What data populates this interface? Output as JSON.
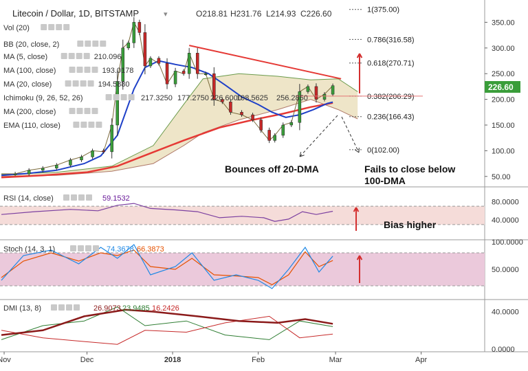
{
  "header": {
    "title": "Litecoin / Dollar, 1D, BITSTAMP",
    "ohlc": [
      "O218.81",
      "H231.76",
      "L214.93",
      "C226.60"
    ],
    "last_price": "226.60"
  },
  "indicators": [
    {
      "label": "Vol (20)",
      "value": "",
      "color": "#bbbbbb"
    },
    {
      "label": "BB (20, close, 2)",
      "value": "",
      "color": "#bbbbbb"
    },
    {
      "label": "MA (5, close)",
      "value": "210.096",
      "color": "#8b1a1a"
    },
    {
      "label": "MA (100, close)",
      "value": "193.0178",
      "color": "#e53935"
    },
    {
      "label": "MA (20, close)",
      "value": "194.5880",
      "color": "#1e40c8"
    },
    {
      "label": "Ichimoku (9, 26, 52, 26)",
      "values": [
        "217.3250",
        "177.2750",
        "226.6000",
        "198.5625",
        "256.2850"
      ],
      "colors": [
        "#1e88e5",
        "#8b1a1a",
        "#2e7d32",
        "#2e7d32",
        "#c62828"
      ]
    },
    {
      "label": "MA (200, close)",
      "value": "",
      "color": "#bbbbbb"
    },
    {
      "label": "EMA (110, close)",
      "value": "",
      "color": "#bbbbbb"
    }
  ],
  "annotations": {
    "bounce": "Bounces off 20-DMA",
    "fails_line1": "Fails to close below",
    "fails_line2": "100-DMA",
    "bias": "Bias higher"
  },
  "fib_levels": [
    {
      "label": "1(375.00)",
      "price": 375.0
    },
    {
      "label": "0.786(316.58)",
      "price": 316.58
    },
    {
      "label": "0.618(270.71)",
      "price": 270.71
    },
    {
      "label": "0.382(206.29)",
      "price": 206.29
    },
    {
      "label": "0.236(166.43)",
      "price": 166.43
    },
    {
      "label": "0(102.00)",
      "price": 102.0
    }
  ],
  "rsi_panel": {
    "label": "RSI (14, close)",
    "value": "59.1532",
    "ticks": [
      "80.0000",
      "40.0000"
    ],
    "bands": [
      70,
      30
    ]
  },
  "stoch_panel": {
    "label": "Stoch (14, 3, 1)",
    "values": [
      "74.3678",
      "66.3873"
    ],
    "ticks": [
      "100.0000",
      "50.0000"
    ],
    "bands": [
      80,
      20
    ]
  },
  "dmi_panel": {
    "label": "DMI (13, 8)",
    "values": [
      "26.9073",
      "23.9485",
      "16.2426"
    ],
    "ticks": [
      "40.0000",
      "0.0000"
    ]
  },
  "chart_data": {
    "type": "line",
    "title": "Litecoin / Dollar, 1D, BITSTAMP",
    "xlabel": "",
    "ylabel": "",
    "x_ticks": [
      "Nov",
      "Dec",
      "2018",
      "Feb",
      "Mar",
      "Apr"
    ],
    "y_ticks": [
      350,
      300,
      250,
      200,
      150,
      100,
      50
    ],
    "ylim": [
      35,
      380
    ],
    "x_range": [
      "2017-10-31",
      "2018-04-24"
    ],
    "close": [
      [
        "2017-10-31",
        55
      ],
      [
        "2017-11-05",
        55
      ],
      [
        "2017-11-10",
        62
      ],
      [
        "2017-11-15",
        66
      ],
      [
        "2017-11-20",
        72
      ],
      [
        "2017-11-25",
        82
      ],
      [
        "2017-11-29",
        88
      ],
      [
        "2017-12-03",
        100
      ],
      [
        "2017-12-07",
        98
      ],
      [
        "2017-12-10",
        150
      ],
      [
        "2017-12-12",
        235
      ],
      [
        "2017-12-14",
        300
      ],
      [
        "2017-12-16",
        310
      ],
      [
        "2017-12-18",
        350
      ],
      [
        "2017-12-20",
        330
      ],
      [
        "2017-12-22",
        265
      ],
      [
        "2017-12-24",
        280
      ],
      [
        "2017-12-27",
        270
      ],
      [
        "2017-12-30",
        230
      ],
      [
        "2018-01-02",
        255
      ],
      [
        "2018-01-05",
        250
      ],
      [
        "2018-01-07",
        290
      ],
      [
        "2018-01-10",
        250
      ],
      [
        "2018-01-13",
        250
      ],
      [
        "2018-01-16",
        200
      ],
      [
        "2018-01-19",
        195
      ],
      [
        "2018-01-22",
        175
      ],
      [
        "2018-01-26",
        170
      ],
      [
        "2018-01-30",
        160
      ],
      [
        "2018-02-02",
        140
      ],
      [
        "2018-02-05",
        120
      ],
      [
        "2018-02-07",
        130
      ],
      [
        "2018-02-10",
        150
      ],
      [
        "2018-02-13",
        155
      ],
      [
        "2018-02-16",
        215
      ],
      [
        "2018-02-19",
        225
      ],
      [
        "2018-02-22",
        200
      ],
      [
        "2018-02-25",
        210
      ],
      [
        "2018-02-28",
        226.6
      ]
    ],
    "series": [
      {
        "name": "MA (20, close)",
        "values": [
          [
            "2017-10-31",
            52
          ],
          [
            "2017-11-10",
            56
          ],
          [
            "2017-11-20",
            62
          ],
          [
            "2017-11-30",
            75
          ],
          [
            "2017-12-06",
            90
          ],
          [
            "2017-12-12",
            130
          ],
          [
            "2017-12-18",
            220
          ],
          [
            "2017-12-22",
            262
          ],
          [
            "2017-12-27",
            275
          ],
          [
            "2018-01-02",
            268
          ],
          [
            "2018-01-08",
            262
          ],
          [
            "2018-01-14",
            250
          ],
          [
            "2018-01-20",
            228
          ],
          [
            "2018-01-26",
            205
          ],
          [
            "2018-02-01",
            190
          ],
          [
            "2018-02-06",
            175
          ],
          [
            "2018-02-11",
            165
          ],
          [
            "2018-02-16",
            170
          ],
          [
            "2018-02-21",
            180
          ],
          [
            "2018-02-26",
            192
          ],
          [
            "2018-02-28",
            194.6
          ]
        ]
      },
      {
        "name": "MA (100, close)",
        "values": [
          [
            "2017-10-31",
            48
          ],
          [
            "2017-11-15",
            52
          ],
          [
            "2017-12-01",
            58
          ],
          [
            "2017-12-12",
            70
          ],
          [
            "2017-12-24",
            95
          ],
          [
            "2018-01-05",
            120
          ],
          [
            "2018-01-18",
            145
          ],
          [
            "2018-01-30",
            160
          ],
          [
            "2018-02-10",
            172
          ],
          [
            "2018-02-20",
            185
          ],
          [
            "2018-02-28",
            193
          ]
        ]
      }
    ],
    "trendline": [
      [
        "2018-01-07",
        305
      ],
      [
        "2018-03-03",
        240
      ]
    ],
    "ichimoku_cloud_upper": [
      [
        "2017-10-31",
        54
      ],
      [
        "2017-11-20",
        58
      ],
      [
        "2017-12-10",
        70
      ],
      [
        "2017-12-25",
        110
      ],
      [
        "2018-01-05",
        190
      ],
      [
        "2018-01-12",
        240
      ],
      [
        "2018-01-25",
        250
      ],
      [
        "2018-02-08",
        245
      ],
      [
        "2018-02-20",
        238
      ],
      [
        "2018-03-02",
        240
      ],
      [
        "2018-03-09",
        215
      ]
    ],
    "ichimoku_cloud_lower": [
      [
        "2017-10-31",
        50
      ],
      [
        "2017-11-20",
        52
      ],
      [
        "2017-12-10",
        60
      ],
      [
        "2017-12-25",
        75
      ],
      [
        "2018-01-05",
        110
      ],
      [
        "2018-01-12",
        135
      ],
      [
        "2018-01-25",
        160
      ],
      [
        "2018-02-08",
        180
      ],
      [
        "2018-02-20",
        200
      ],
      [
        "2018-03-02",
        180
      ],
      [
        "2018-03-09",
        162
      ]
    ],
    "rsi": [
      [
        "2017-10-31",
        52
      ],
      [
        "2017-11-12",
        58
      ],
      [
        "2017-11-25",
        63
      ],
      [
        "2017-12-05",
        60
      ],
      [
        "2017-12-12",
        72
      ],
      [
        "2017-12-18",
        76
      ],
      [
        "2017-12-24",
        65
      ],
      [
        "2018-01-02",
        62
      ],
      [
        "2018-01-10",
        58
      ],
      [
        "2018-01-18",
        45
      ],
      [
        "2018-01-26",
        48
      ],
      [
        "2018-02-03",
        45
      ],
      [
        "2018-02-07",
        37
      ],
      [
        "2018-02-12",
        42
      ],
      [
        "2018-02-17",
        58
      ],
      [
        "2018-02-22",
        52
      ],
      [
        "2018-02-28",
        59
      ]
    ],
    "stoch_k": [
      [
        "2017-10-31",
        30
      ],
      [
        "2017-11-08",
        75
      ],
      [
        "2017-11-18",
        85
      ],
      [
        "2017-11-28",
        60
      ],
      [
        "2017-12-06",
        90
      ],
      [
        "2017-12-12",
        70
      ],
      [
        "2017-12-18",
        95
      ],
      [
        "2017-12-24",
        40
      ],
      [
        "2018-01-02",
        55
      ],
      [
        "2018-01-08",
        80
      ],
      [
        "2018-01-16",
        30
      ],
      [
        "2018-01-24",
        40
      ],
      [
        "2018-02-01",
        30
      ],
      [
        "2018-02-06",
        15
      ],
      [
        "2018-02-12",
        50
      ],
      [
        "2018-02-18",
        90
      ],
      [
        "2018-02-23",
        45
      ],
      [
        "2018-02-28",
        74
      ]
    ],
    "stoch_d": [
      [
        "2017-10-31",
        35
      ],
      [
        "2017-11-08",
        65
      ],
      [
        "2017-11-18",
        80
      ],
      [
        "2017-11-28",
        65
      ],
      [
        "2017-12-06",
        80
      ],
      [
        "2017-12-12",
        75
      ],
      [
        "2017-12-18",
        85
      ],
      [
        "2017-12-24",
        55
      ],
      [
        "2018-01-02",
        50
      ],
      [
        "2018-01-08",
        70
      ],
      [
        "2018-01-16",
        40
      ],
      [
        "2018-01-24",
        38
      ],
      [
        "2018-02-01",
        35
      ],
      [
        "2018-02-06",
        22
      ],
      [
        "2018-02-12",
        40
      ],
      [
        "2018-02-18",
        82
      ],
      [
        "2018-02-23",
        55
      ],
      [
        "2018-02-28",
        66
      ]
    ],
    "dmi_adx": [
      [
        "2017-10-31",
        15
      ],
      [
        "2017-11-15",
        20
      ],
      [
        "2017-11-30",
        35
      ],
      [
        "2017-12-15",
        42
      ],
      [
        "2017-12-25",
        40
      ],
      [
        "2018-01-10",
        35
      ],
      [
        "2018-01-25",
        30
      ],
      [
        "2018-02-08",
        28
      ],
      [
        "2018-02-18",
        32
      ],
      [
        "2018-02-28",
        27
      ]
    ],
    "dmi_plus": [
      [
        "2017-10-31",
        10
      ],
      [
        "2017-11-15",
        25
      ],
      [
        "2017-11-30",
        30
      ],
      [
        "2017-12-12",
        45
      ],
      [
        "2017-12-22",
        25
      ],
      [
        "2018-01-06",
        30
      ],
      [
        "2018-01-20",
        15
      ],
      [
        "2018-02-05",
        10
      ],
      [
        "2018-02-16",
        30
      ],
      [
        "2018-02-28",
        24
      ]
    ],
    "dmi_minus": [
      [
        "2017-10-31",
        20
      ],
      [
        "2017-11-15",
        12
      ],
      [
        "2017-11-30",
        8
      ],
      [
        "2017-12-12",
        5
      ],
      [
        "2017-12-22",
        20
      ],
      [
        "2018-01-06",
        18
      ],
      [
        "2018-01-20",
        28
      ],
      [
        "2018-02-05",
        35
      ],
      [
        "2018-02-16",
        12
      ],
      [
        "2018-02-28",
        16
      ]
    ]
  }
}
